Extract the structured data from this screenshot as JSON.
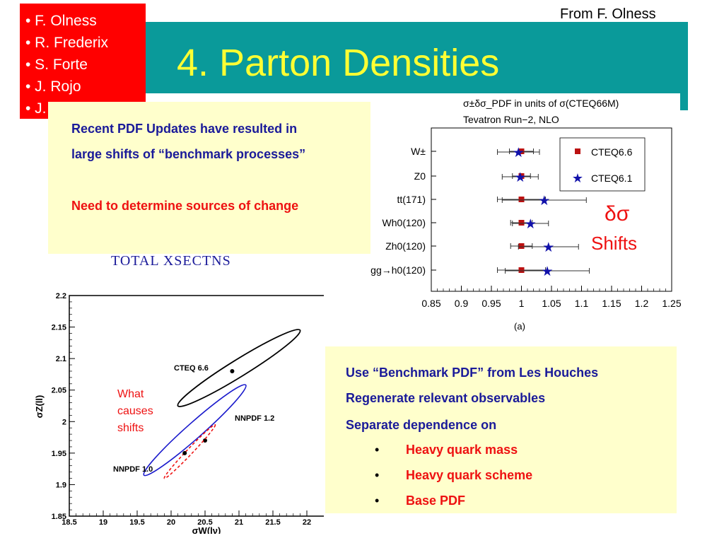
{
  "header": {
    "title": "4. Parton Densities",
    "source": "From F. Olness",
    "names": [
      "• F. Olness",
      "• R. Frederix",
      "• S. Forte",
      "• J. Rojo",
      "• J. Huston"
    ]
  },
  "box1": {
    "line1": "Recent PDF Updates have resulted in",
    "line2": "large shifts of “benchmark processes”",
    "line3": "Need to determine sources of change"
  },
  "total_label": "TOTAL XSECTNS",
  "box2": {
    "line1": "Use “Benchmark PDF” from Les Houches",
    "line2": "Regenerate relevant observables",
    "line3": "Separate dependence on",
    "bullet": "•",
    "items": [
      "Heavy quark mass",
      "Heavy quark scheme",
      "Base PDF"
    ]
  },
  "colors": {
    "title_bar": "#0a9a9a",
    "title_text": "#ffff33",
    "names_box": "#ff0000",
    "note_box": "#ffffcc",
    "blue_text": "#1a1a99",
    "red_text": "#ee1111"
  },
  "chart_data": [
    {
      "type": "scatter",
      "title": "σ±δσ_PDF in units of σ(CTEQ66M)",
      "subtitle": "Tevatron Run−2, NLO",
      "caption": "(a)",
      "annotation": [
        "δσ",
        "Shifts"
      ],
      "categories": [
        "W±",
        "Z0",
        "tt(171)",
        "Wh0(120)",
        "Zh0(120)",
        "gg→h0(120)"
      ],
      "x_ticks": [
        "0.85",
        "0.9",
        "0.95",
        "1",
        "1.05",
        "1.1",
        "1.15",
        "1.2",
        "1.25"
      ],
      "xlim": [
        0.85,
        1.25
      ],
      "legend_position": "top-right",
      "series": [
        {
          "name": "CTEQ6.6",
          "marker": "square",
          "color": "#bb1111",
          "values": [
            1.0,
            1.0,
            1.0,
            1.0,
            1.0,
            1.0
          ],
          "err_lo": [
            0.02,
            0.015,
            0.04,
            0.018,
            0.018,
            0.04
          ],
          "err_hi": [
            0.02,
            0.015,
            0.04,
            0.018,
            0.018,
            0.04
          ]
        },
        {
          "name": "CTEQ6.1",
          "marker": "star",
          "color": "#1111aa",
          "values": [
            0.995,
            0.998,
            1.038,
            1.015,
            1.045,
            1.043
          ],
          "err_lo": [
            0.035,
            0.03,
            0.07,
            0.03,
            0.05,
            0.07
          ],
          "err_hi": [
            0.035,
            0.03,
            0.07,
            0.03,
            0.05,
            0.07
          ]
        }
      ]
    },
    {
      "type": "scatter",
      "xlabel": "σW(lν)",
      "ylabel": "σZ(ll)",
      "xlim": [
        18.5,
        22
      ],
      "ylim": [
        1.85,
        2.2
      ],
      "x_ticks": [
        "18.5",
        "19",
        "19.5",
        "20",
        "20.5",
        "21",
        "21.5",
        "22"
      ],
      "y_ticks": [
        "1.85",
        "1.9",
        "1.95",
        "2",
        "2.05",
        "2.1",
        "2.15",
        "2.2"
      ],
      "annotation": [
        "What",
        "causes",
        "shifts"
      ],
      "series": [
        {
          "name": "CTEQ 6.6",
          "color": "#000000",
          "points": [
            [
              20.9,
              2.08
            ]
          ],
          "ellipse": {
            "cx": 20.9,
            "cy": 2.085,
            "from": [
              20.1,
              2.025
            ],
            "to": [
              21.9,
              2.145
            ]
          }
        },
        {
          "name": "NNPDF 1.2",
          "color": "#1a1acc",
          "points": [
            [
              20.5,
              1.97
            ]
          ],
          "ellipse": {
            "cx": 20.42,
            "cy": 1.985,
            "from": [
              19.6,
              1.915
            ],
            "to": [
              21.1,
              2.058
            ]
          }
        },
        {
          "name": "NNPDF 1.0",
          "color": "#ee1111",
          "points": [
            [
              20.2,
              1.95
            ]
          ],
          "ellipse": {
            "cx": 20.3,
            "cy": 1.96,
            "from": [
              19.9,
              1.91
            ],
            "to": [
              20.65,
              1.995
            ]
          }
        }
      ]
    }
  ]
}
